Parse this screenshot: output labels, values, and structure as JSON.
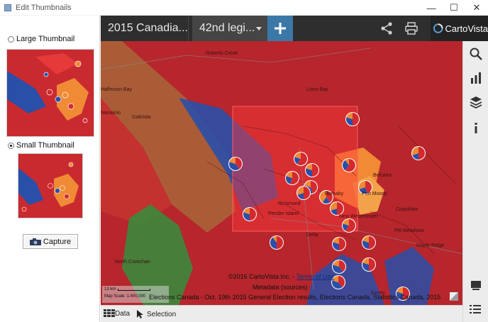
{
  "window": {
    "title": "Edit Thumbnails",
    "controls": [
      "—",
      "☐",
      "✕"
    ]
  },
  "left_panel": {
    "large_thumbnail_label": "Large Thumbnail",
    "large_thumbnail_selected": false,
    "small_thumbnail_label": "Small Thumbnail",
    "small_thumbnail_selected": true,
    "capture_label": "Capture"
  },
  "topbar": {
    "tab_title": "2015 Canadia...",
    "layer_dropdown": "42nd legi...",
    "brand": "CartoVista"
  },
  "map": {
    "place_labels": [
      "Roberts Creek",
      "Halfmoon Bay",
      "Nanaimo",
      "Gabriola",
      "Lions Bay",
      "Belcarra",
      "Port Moody",
      "Coquitlam",
      "Pitt Meadows",
      "Maple Ridge",
      "North Cowichan",
      "Richmond",
      "Burnaby",
      "New Westminster",
      "Delta",
      "Surrey",
      "Pender Island"
    ],
    "copyright_text": "©2016 CartoVista Inc. - ",
    "terms_link": "Terms of Use",
    "metadata_label": "Metadata (sources)",
    "attribution": "Elections Canada - Oct. 19th 2015 General Election results, Elections Canada, Statistics Canada, 2015",
    "scale_label": "13 km",
    "scale_text": "Map Scale: 1:400,000"
  },
  "bottombar": {
    "data_label": "Data",
    "selection_label": "Selection"
  },
  "colors": {
    "liberal": "#d42a2e",
    "conservative": "#2a4fa8",
    "ndp": "#f08a34",
    "green": "#3b8a3c",
    "accent": "#3b78a8"
  }
}
